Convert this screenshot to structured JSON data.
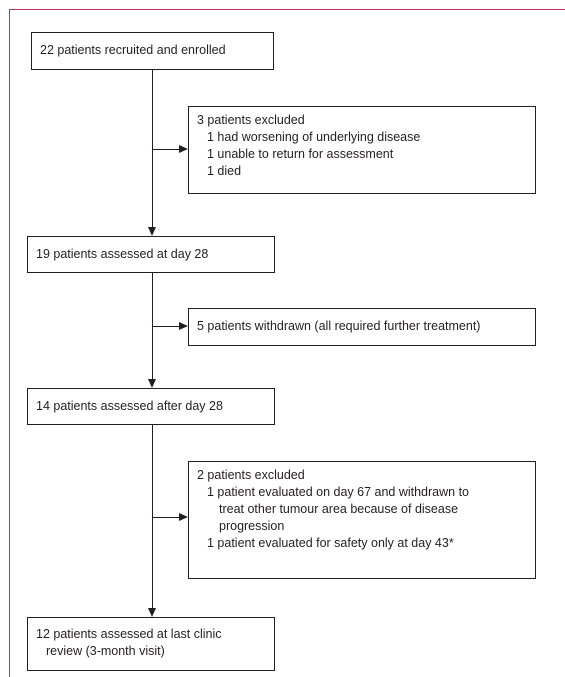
{
  "boxes": {
    "recruited": {
      "text": "22 patients recruited and enrolled"
    },
    "excluded_1": {
      "title": "3 patients excluded",
      "items": [
        "1 had worsening of underlying disease",
        "1 unable to return for assessment",
        "1 died"
      ]
    },
    "day28": {
      "text": "19 patients assessed at day 28"
    },
    "withdrawn": {
      "text": "5 patients withdrawn (all required further treatment)"
    },
    "after_day28": {
      "text": "14 patients assessed after day 28"
    },
    "excluded_2": {
      "title": "2 patients excluded",
      "item1_line1": "1 patient evaluated on day 67 and withdrawn to",
      "item1_line2": "treat other tumour area because of disease",
      "item1_line3": "progression",
      "item2": "1 patient evaluated for safety only at day 43*"
    },
    "final": {
      "line1": "12 patients assessed at last clinic",
      "line2": "review (3-month visit)"
    }
  }
}
